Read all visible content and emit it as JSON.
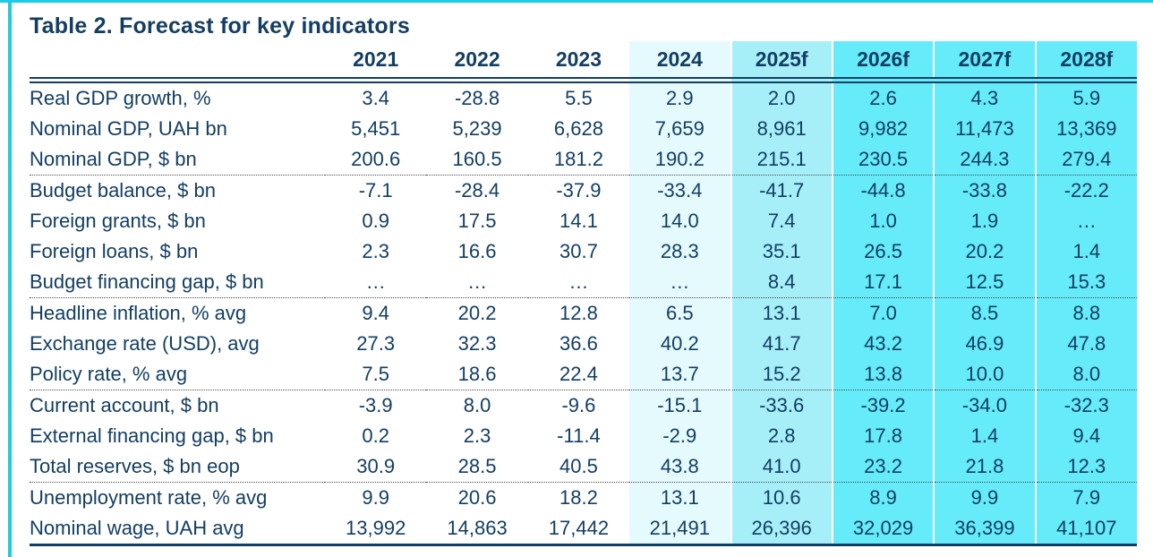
{
  "colors": {
    "text_navy": "#133E63",
    "frame_cyan": "#1ECBE3",
    "col_2024_bg": "#E4FAFD",
    "col_2025f_bg": "#A6EFF8",
    "forecast_bg": "#66EBFA"
  },
  "table": {
    "title": "Table 2. Forecast for key indicators",
    "columns": [
      {
        "label": "",
        "shade": "none"
      },
      {
        "label": "2021",
        "shade": "none"
      },
      {
        "label": "2022",
        "shade": "none"
      },
      {
        "label": "2023",
        "shade": "none"
      },
      {
        "label": "2024",
        "shade": "light"
      },
      {
        "label": "2025f",
        "shade": "medium"
      },
      {
        "label": "2026f",
        "shade": "strong"
      },
      {
        "label": "2027f",
        "shade": "strong"
      },
      {
        "label": "2028f",
        "shade": "strong"
      }
    ],
    "groups": [
      {
        "rows": [
          {
            "label": "Real GDP growth, %",
            "values": [
              "3.4",
              "-28.8",
              "5.5",
              "2.9",
              "2.0",
              "2.6",
              "4.3",
              "5.9"
            ]
          },
          {
            "label": "Nominal GDP, UAH bn",
            "values": [
              "5,451",
              "5,239",
              "6,628",
              "7,659",
              "8,961",
              "9,982",
              "11,473",
              "13,369"
            ]
          },
          {
            "label": "Nominal GDP, $ bn",
            "values": [
              "200.6",
              "160.5",
              "181.2",
              "190.2",
              "215.1",
              "230.5",
              "244.3",
              "279.4"
            ]
          }
        ]
      },
      {
        "rows": [
          {
            "label": "Budget balance, $ bn",
            "values": [
              "-7.1",
              "-28.4",
              "-37.9",
              "-33.4",
              "-41.7",
              "-44.8",
              "-33.8",
              "-22.2"
            ]
          },
          {
            "label": "Foreign grants, $ bn",
            "values": [
              "0.9",
              "17.5",
              "14.1",
              "14.0",
              "7.4",
              "1.0",
              "1.9",
              "…"
            ]
          },
          {
            "label": "Foreign loans, $ bn",
            "values": [
              "2.3",
              "16.6",
              "30.7",
              "28.3",
              "35.1",
              "26.5",
              "20.2",
              "1.4"
            ]
          },
          {
            "label": "Budget financing gap, $ bn",
            "values": [
              "…",
              "…",
              "…",
              "…",
              "8.4",
              "17.1",
              "12.5",
              "15.3"
            ]
          }
        ]
      },
      {
        "rows": [
          {
            "label": "Headline inflation, % avg",
            "values": [
              "9.4",
              "20.2",
              "12.8",
              "6.5",
              "13.1",
              "7.0",
              "8.5",
              "8.8"
            ]
          },
          {
            "label": "Exchange rate (USD), avg",
            "values": [
              "27.3",
              "32.3",
              "36.6",
              "40.2",
              "41.7",
              "43.2",
              "46.9",
              "47.8"
            ]
          },
          {
            "label": "Policy rate, % avg",
            "values": [
              "7.5",
              "18.6",
              "22.4",
              "13.7",
              "15.2",
              "13.8",
              "10.0",
              "8.0"
            ]
          }
        ]
      },
      {
        "rows": [
          {
            "label": "Current account, $ bn",
            "values": [
              "-3.9",
              "8.0",
              "-9.6",
              "-15.1",
              "-33.6",
              "-39.2",
              "-34.0",
              "-32.3"
            ]
          },
          {
            "label": "External financing gap, $ bn",
            "values": [
              "0.2",
              "2.3",
              "-11.4",
              "-2.9",
              "2.8",
              "17.8",
              "1.4",
              "9.4"
            ]
          },
          {
            "label": "Total reserves, $ bn eop",
            "values": [
              "30.9",
              "28.5",
              "40.5",
              "43.8",
              "41.0",
              "23.2",
              "21.8",
              "12.3"
            ]
          }
        ]
      },
      {
        "rows": [
          {
            "label": "Unemployment rate, % avg",
            "values": [
              "9.9",
              "20.6",
              "18.2",
              "13.1",
              "10.6",
              "8.9",
              "9.9",
              "7.9"
            ]
          },
          {
            "label": "Nominal wage, UAH avg",
            "values": [
              "13,992",
              "14,863",
              "17,442",
              "21,491",
              "26,396",
              "32,029",
              "36,399",
              "41,107"
            ]
          }
        ]
      }
    ]
  }
}
